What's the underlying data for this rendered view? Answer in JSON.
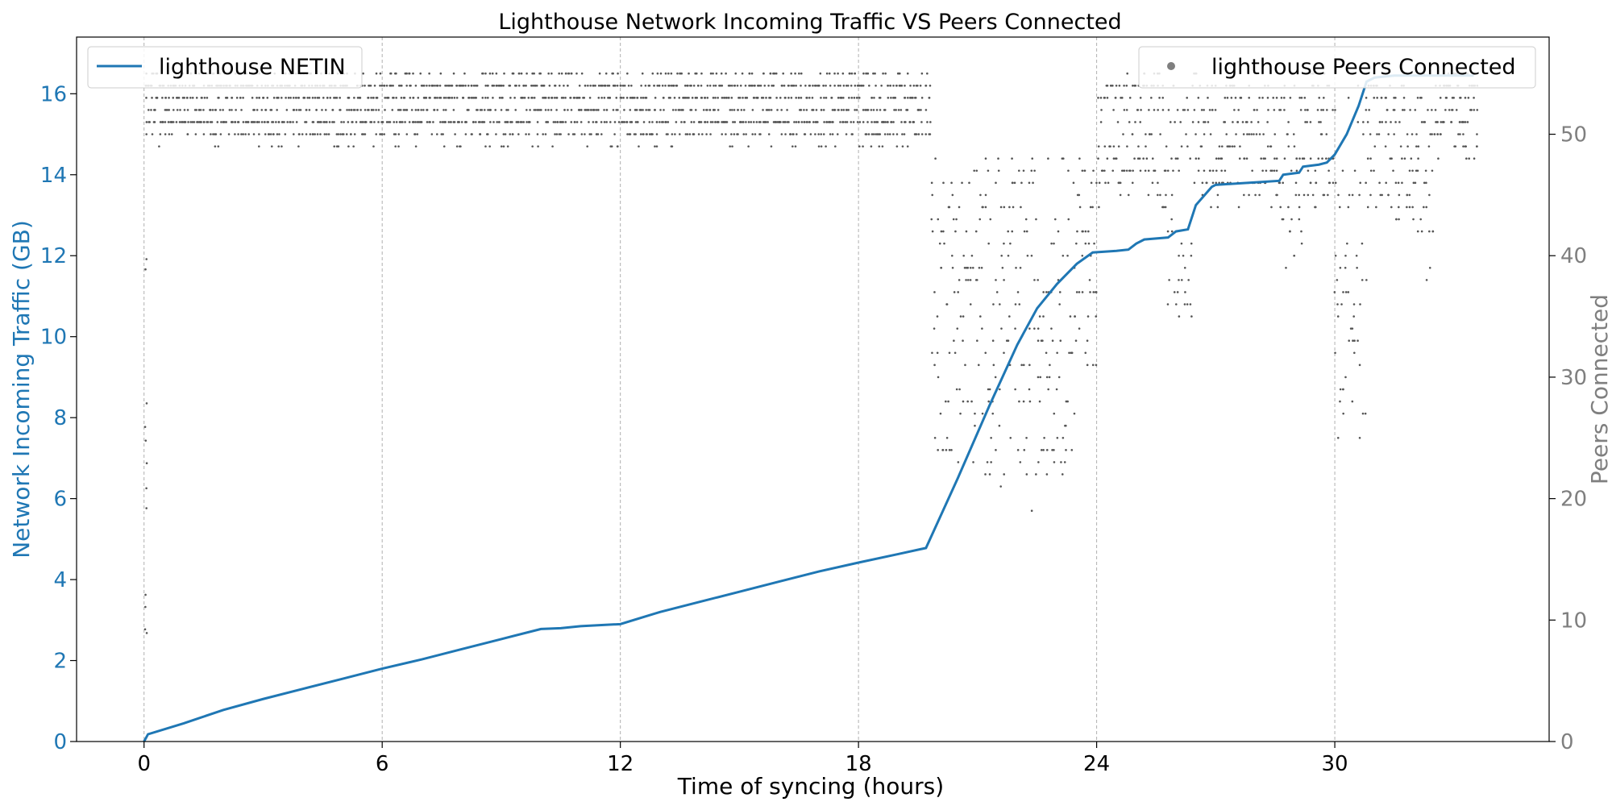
{
  "chart_data": {
    "type": "line",
    "title": "Lighthouse Network Incoming Traffic VS Peers Connected",
    "xlabel": "Time of syncing (hours)",
    "ylabel_left": "Network Incoming Traffic (GB)",
    "ylabel_right": "Peers Connected",
    "xlim": [
      -1.7,
      35.4
    ],
    "ylim_left": [
      0,
      17.4
    ],
    "ylim_right": [
      0,
      58
    ],
    "x_ticks": [
      0,
      6,
      12,
      18,
      24,
      30
    ],
    "y_left_ticks": [
      0,
      2,
      4,
      6,
      8,
      10,
      12,
      14,
      16
    ],
    "y_right_ticks": [
      0,
      10,
      20,
      30,
      40,
      50
    ],
    "grid": "x-dashed",
    "colors": {
      "netin": "#1f77b4",
      "peers": "#7f7f7f",
      "grid": "#b0b0b0"
    },
    "legend_left": {
      "position": "top-left",
      "label": "lighthouse NETIN"
    },
    "legend_right": {
      "position": "top-right",
      "label": "lighthouse Peers Connected"
    },
    "series": [
      {
        "name": "lighthouse NETIN",
        "axis": "left",
        "x": [
          0,
          0.1,
          1,
          2,
          3,
          4,
          5,
          6,
          7,
          8,
          9,
          10,
          10.5,
          11,
          12,
          13,
          14,
          15,
          16,
          17,
          18,
          19,
          19.7,
          20.5,
          21.3,
          22,
          22.5,
          23,
          23.5,
          23.9,
          24.5,
          24.8,
          25,
          25.2,
          25.8,
          26,
          26.3,
          26.5,
          26.9,
          27,
          28.6,
          28.7,
          29.1,
          29.2,
          29.6,
          29.8,
          30,
          30.3,
          30.6,
          30.8,
          31,
          31.5,
          32.5,
          33.5
        ],
        "y": [
          0,
          0.18,
          0.45,
          0.78,
          1.05,
          1.3,
          1.55,
          1.8,
          2.03,
          2.28,
          2.53,
          2.78,
          2.8,
          2.85,
          2.9,
          3.2,
          3.45,
          3.7,
          3.95,
          4.2,
          4.42,
          4.63,
          4.78,
          6.5,
          8.3,
          9.8,
          10.7,
          11.3,
          11.8,
          12.08,
          12.12,
          12.15,
          12.3,
          12.4,
          12.45,
          12.6,
          12.65,
          13.25,
          13.7,
          13.75,
          13.85,
          14.0,
          14.05,
          14.2,
          14.25,
          14.3,
          14.5,
          15.0,
          15.7,
          16.3,
          16.4,
          16.45,
          16.45,
          16.45
        ]
      },
      {
        "name": "lighthouse Peers Connected",
        "axis": "right",
        "type": "scatter",
        "x_range": [
          0,
          33.6
        ],
        "y_range": [
          15,
          55
        ],
        "note": "dense scatter of peer counts"
      }
    ]
  }
}
